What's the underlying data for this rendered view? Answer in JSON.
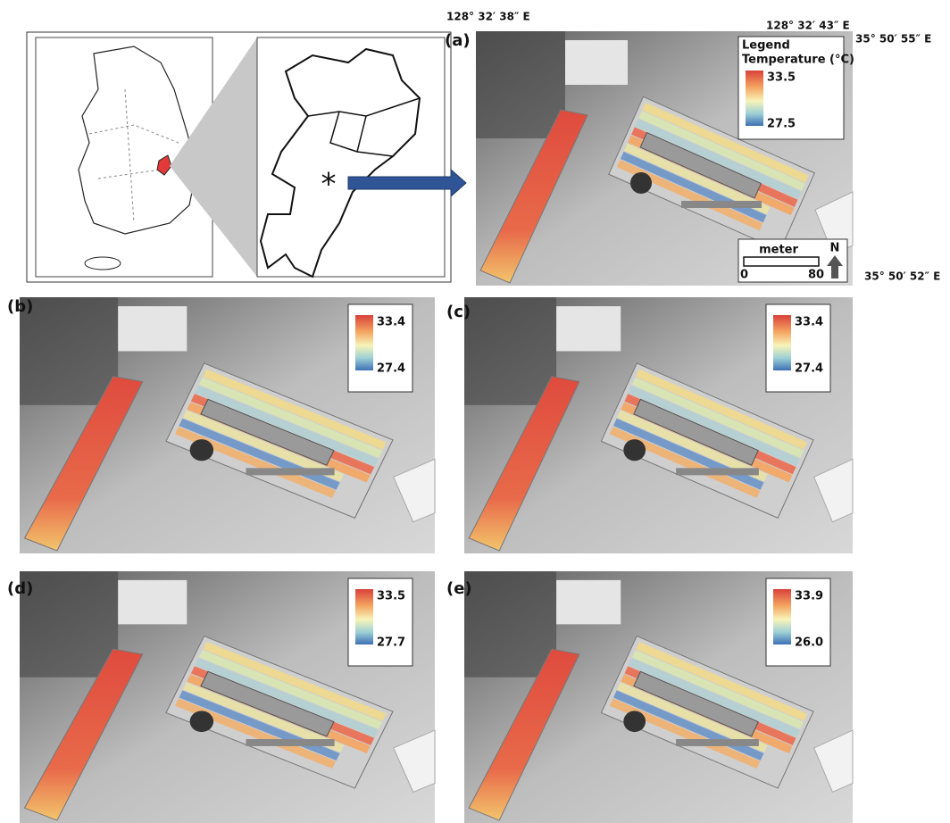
{
  "coordinates": {
    "top_left": "128° 32′ 38″ E",
    "top_right": "128° 32′ 43″ E",
    "right_top": "35° 50′ 55″ E",
    "right_bottom": "35° 50′ 52″ E"
  },
  "panels": [
    {
      "label": "(a)",
      "legend_title": "Legend",
      "legend_subtitle": "Temperature (°C)",
      "max": "33.5",
      "min": "27.5",
      "scale_label": "meter",
      "scale_start": "0",
      "scale_end": "80",
      "north": "N"
    },
    {
      "label": "(b)",
      "max": "33.4",
      "min": "27.4"
    },
    {
      "label": "(c)",
      "max": "33.4",
      "min": "27.4"
    },
    {
      "label": "(d)",
      "max": "33.5",
      "min": "27.7"
    },
    {
      "label": "(e)",
      "max": "33.9",
      "min": "26.0"
    }
  ]
}
